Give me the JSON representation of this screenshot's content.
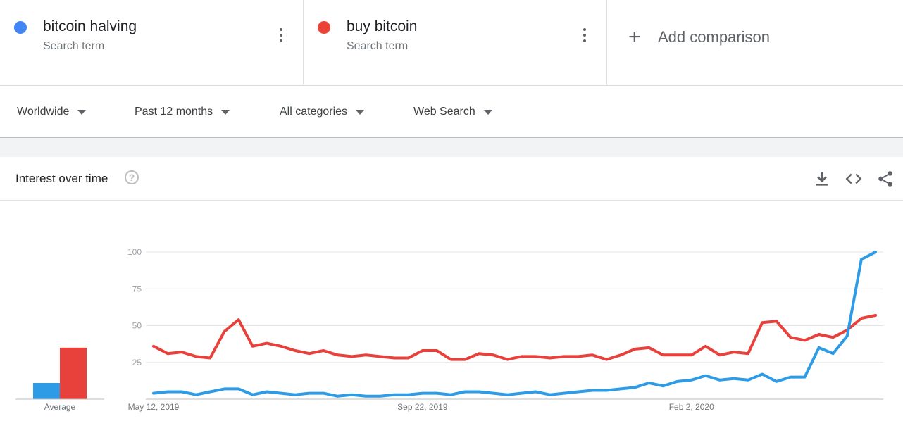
{
  "terms": [
    {
      "name": "bitcoin halving",
      "subtitle": "Search term",
      "color": "#4285f4"
    },
    {
      "name": "buy bitcoin",
      "subtitle": "Search term",
      "color": "#ea4335"
    }
  ],
  "add_comparison": {
    "label": "Add comparison",
    "icon": "plus-icon"
  },
  "filters": [
    {
      "label": "Worldwide"
    },
    {
      "label": "Past 12 months"
    },
    {
      "label": "All categories"
    },
    {
      "label": "Web Search"
    }
  ],
  "card": {
    "title": "Interest over time",
    "icons": [
      "help-icon",
      "download-icon",
      "embed-icon",
      "share-icon"
    ]
  },
  "chart_data": {
    "type": "line",
    "title": "Interest over time",
    "ylim": [
      0,
      100
    ],
    "yticks": [
      25,
      50,
      75,
      100
    ],
    "grid": true,
    "xticks": [
      "May 12, 2019",
      "Sep 22, 2019",
      "Feb 2, 2020"
    ],
    "average": {
      "label": "Average",
      "values": [
        11,
        35
      ]
    },
    "series": [
      {
        "name": "bitcoin halving",
        "color": "#2d9be6",
        "values": [
          4,
          5,
          5,
          3,
          5,
          7,
          7,
          3,
          5,
          4,
          3,
          4,
          4,
          2,
          3,
          2,
          2,
          3,
          3,
          4,
          4,
          3,
          5,
          5,
          4,
          3,
          4,
          5,
          3,
          4,
          5,
          6,
          6,
          7,
          8,
          11,
          9,
          12,
          13,
          16,
          13,
          14,
          13,
          17,
          12,
          15,
          15,
          35,
          31,
          43,
          95,
          100
        ]
      },
      {
        "name": "buy bitcoin",
        "color": "#e8403a",
        "values": [
          36,
          31,
          32,
          29,
          28,
          46,
          54,
          36,
          38,
          36,
          33,
          31,
          33,
          30,
          29,
          30,
          29,
          28,
          28,
          33,
          33,
          27,
          27,
          31,
          30,
          27,
          29,
          29,
          28,
          29,
          29,
          30,
          27,
          30,
          34,
          35,
          30,
          30,
          30,
          36,
          30,
          32,
          31,
          52,
          53,
          42,
          40,
          44,
          42,
          47,
          55,
          57
        ]
      }
    ]
  }
}
